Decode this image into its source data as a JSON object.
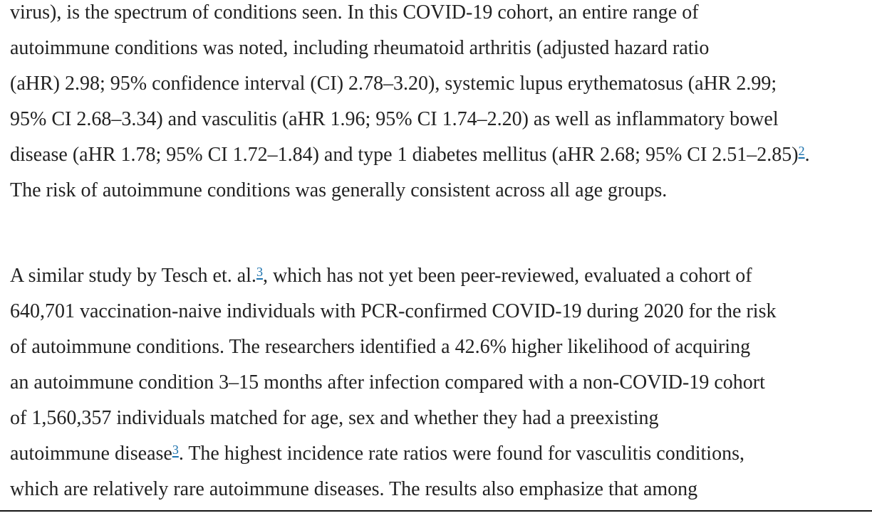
{
  "colors": {
    "text": "#222222",
    "link": "#1b71ad",
    "background": "#ffffff",
    "bottom_rule": "#141414"
  },
  "article": {
    "paragraphs": [
      {
        "lines": [
          [
            {
              "t": "virus), is the spectrum of conditions seen. In this COVID-19 cohort, an entire range of"
            }
          ],
          [
            {
              "t": "autoimmune conditions was noted, including rheumatoid arthritis (adjusted hazard ratio"
            }
          ],
          [
            {
              "t": "(aHR) 2.98; 95% confidence interval (CI) 2.78–3.20), systemic lupus erythematosus (aHR 2.99;"
            }
          ],
          [
            {
              "t": "95% CI 2.68–3.34) and vasculitis (aHR 1.96; 95% CI 1.74–2.20) as well as inflammatory bowel"
            }
          ],
          [
            {
              "t": "disease (aHR 1.78; 95% CI 1.72–1.84) and type 1 diabetes mellitus (aHR 2.68; 95% CI 2.51–2.85)"
            },
            {
              "ref": "2"
            },
            {
              "t": "."
            }
          ],
          [
            {
              "t": "The risk of autoimmune conditions was generally consistent across all age groups."
            }
          ]
        ]
      },
      {
        "lines": [
          [
            {
              "t": "A similar study by Tesch et. al."
            },
            {
              "ref": "3"
            },
            {
              "t": ", which has not yet been peer-reviewed, evaluated a cohort of"
            }
          ],
          [
            {
              "t": "640,701 vaccination-naive individuals with PCR-confirmed COVID-19 during 2020 for the risk"
            }
          ],
          [
            {
              "t": "of autoimmune conditions. The researchers identified a 42.6% higher likelihood of acquiring"
            }
          ],
          [
            {
              "t": "an autoimmune condition 3–15 months after infection compared with a non-COVID-19 cohort"
            }
          ],
          [
            {
              "t": "of 1,560,357 individuals matched for age, sex and whether they had a preexisting"
            }
          ],
          [
            {
              "t": "autoimmune disease"
            },
            {
              "ref": "3"
            },
            {
              "t": ". The highest incidence rate ratios were found for vasculitis conditions,"
            }
          ],
          [
            {
              "t": "which are relatively rare autoimmune diseases. The results also emphasize that among"
            }
          ]
        ]
      }
    ]
  }
}
